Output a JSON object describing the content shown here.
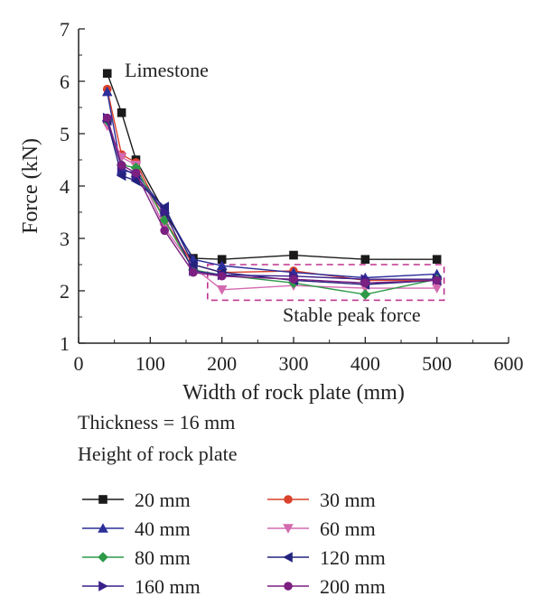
{
  "chart_data": {
    "type": "line",
    "xlabel": "Width of rock plate (mm)",
    "ylabel": "Force (kN)",
    "xlim": [
      0,
      600
    ],
    "ylim": [
      1,
      7
    ],
    "x_ticks": [
      0,
      100,
      200,
      300,
      400,
      500,
      600
    ],
    "y_ticks": [
      1,
      2,
      3,
      4,
      5,
      6,
      7
    ],
    "grid": false,
    "legend_title": "Height of rock plate",
    "legend_position": "bottom",
    "note": "Thickness = 16 mm",
    "annotations": {
      "material": "Limestone",
      "region": "Stable peak force"
    },
    "region_box": {
      "x": [
        180,
        510
      ],
      "y": [
        1.82,
        2.5
      ],
      "color": "#c0338f"
    },
    "x": [
      40,
      60,
      80,
      120,
      160,
      200,
      300,
      400,
      500
    ],
    "series": [
      {
        "name": "20 mm",
        "marker": "square",
        "color": "#1a1a1a",
        "values": [
          6.15,
          5.4,
          4.5,
          3.5,
          2.62,
          2.6,
          2.68,
          2.6,
          2.6
        ]
      },
      {
        "name": "30 mm",
        "marker": "circle",
        "color": "#d9412a",
        "values": [
          5.85,
          4.6,
          4.45,
          3.35,
          2.5,
          2.35,
          2.38,
          2.2,
          2.2
        ]
      },
      {
        "name": "40 mm",
        "marker": "triangle-up",
        "color": "#2c2f9a",
        "values": [
          5.8,
          4.3,
          4.25,
          3.55,
          2.6,
          2.48,
          2.35,
          2.25,
          2.32
        ]
      },
      {
        "name": "60 mm",
        "marker": "triangle-down",
        "color": "#d36ab0",
        "values": [
          5.15,
          4.55,
          4.4,
          3.2,
          2.45,
          2.02,
          2.1,
          2.05,
          2.05
        ]
      },
      {
        "name": "80 mm",
        "marker": "diamond",
        "color": "#2e9a48",
        "values": [
          5.25,
          4.4,
          4.35,
          3.35,
          2.4,
          2.3,
          2.15,
          1.93,
          2.22
        ]
      },
      {
        "name": "120 mm",
        "marker": "triangle-left",
        "color": "#23237e",
        "values": [
          5.25,
          4.2,
          4.1,
          3.6,
          2.5,
          2.35,
          2.2,
          2.12,
          2.2
        ]
      },
      {
        "name": "160 mm",
        "marker": "triangle-right",
        "color": "#3a1f8a",
        "values": [
          5.3,
          4.35,
          4.2,
          3.5,
          2.38,
          2.3,
          2.28,
          2.22,
          2.22
        ]
      },
      {
        "name": "200 mm",
        "marker": "circle",
        "color": "#7b1f80",
        "values": [
          5.3,
          4.4,
          4.25,
          3.15,
          2.35,
          2.28,
          2.22,
          2.15,
          2.2
        ]
      }
    ]
  }
}
